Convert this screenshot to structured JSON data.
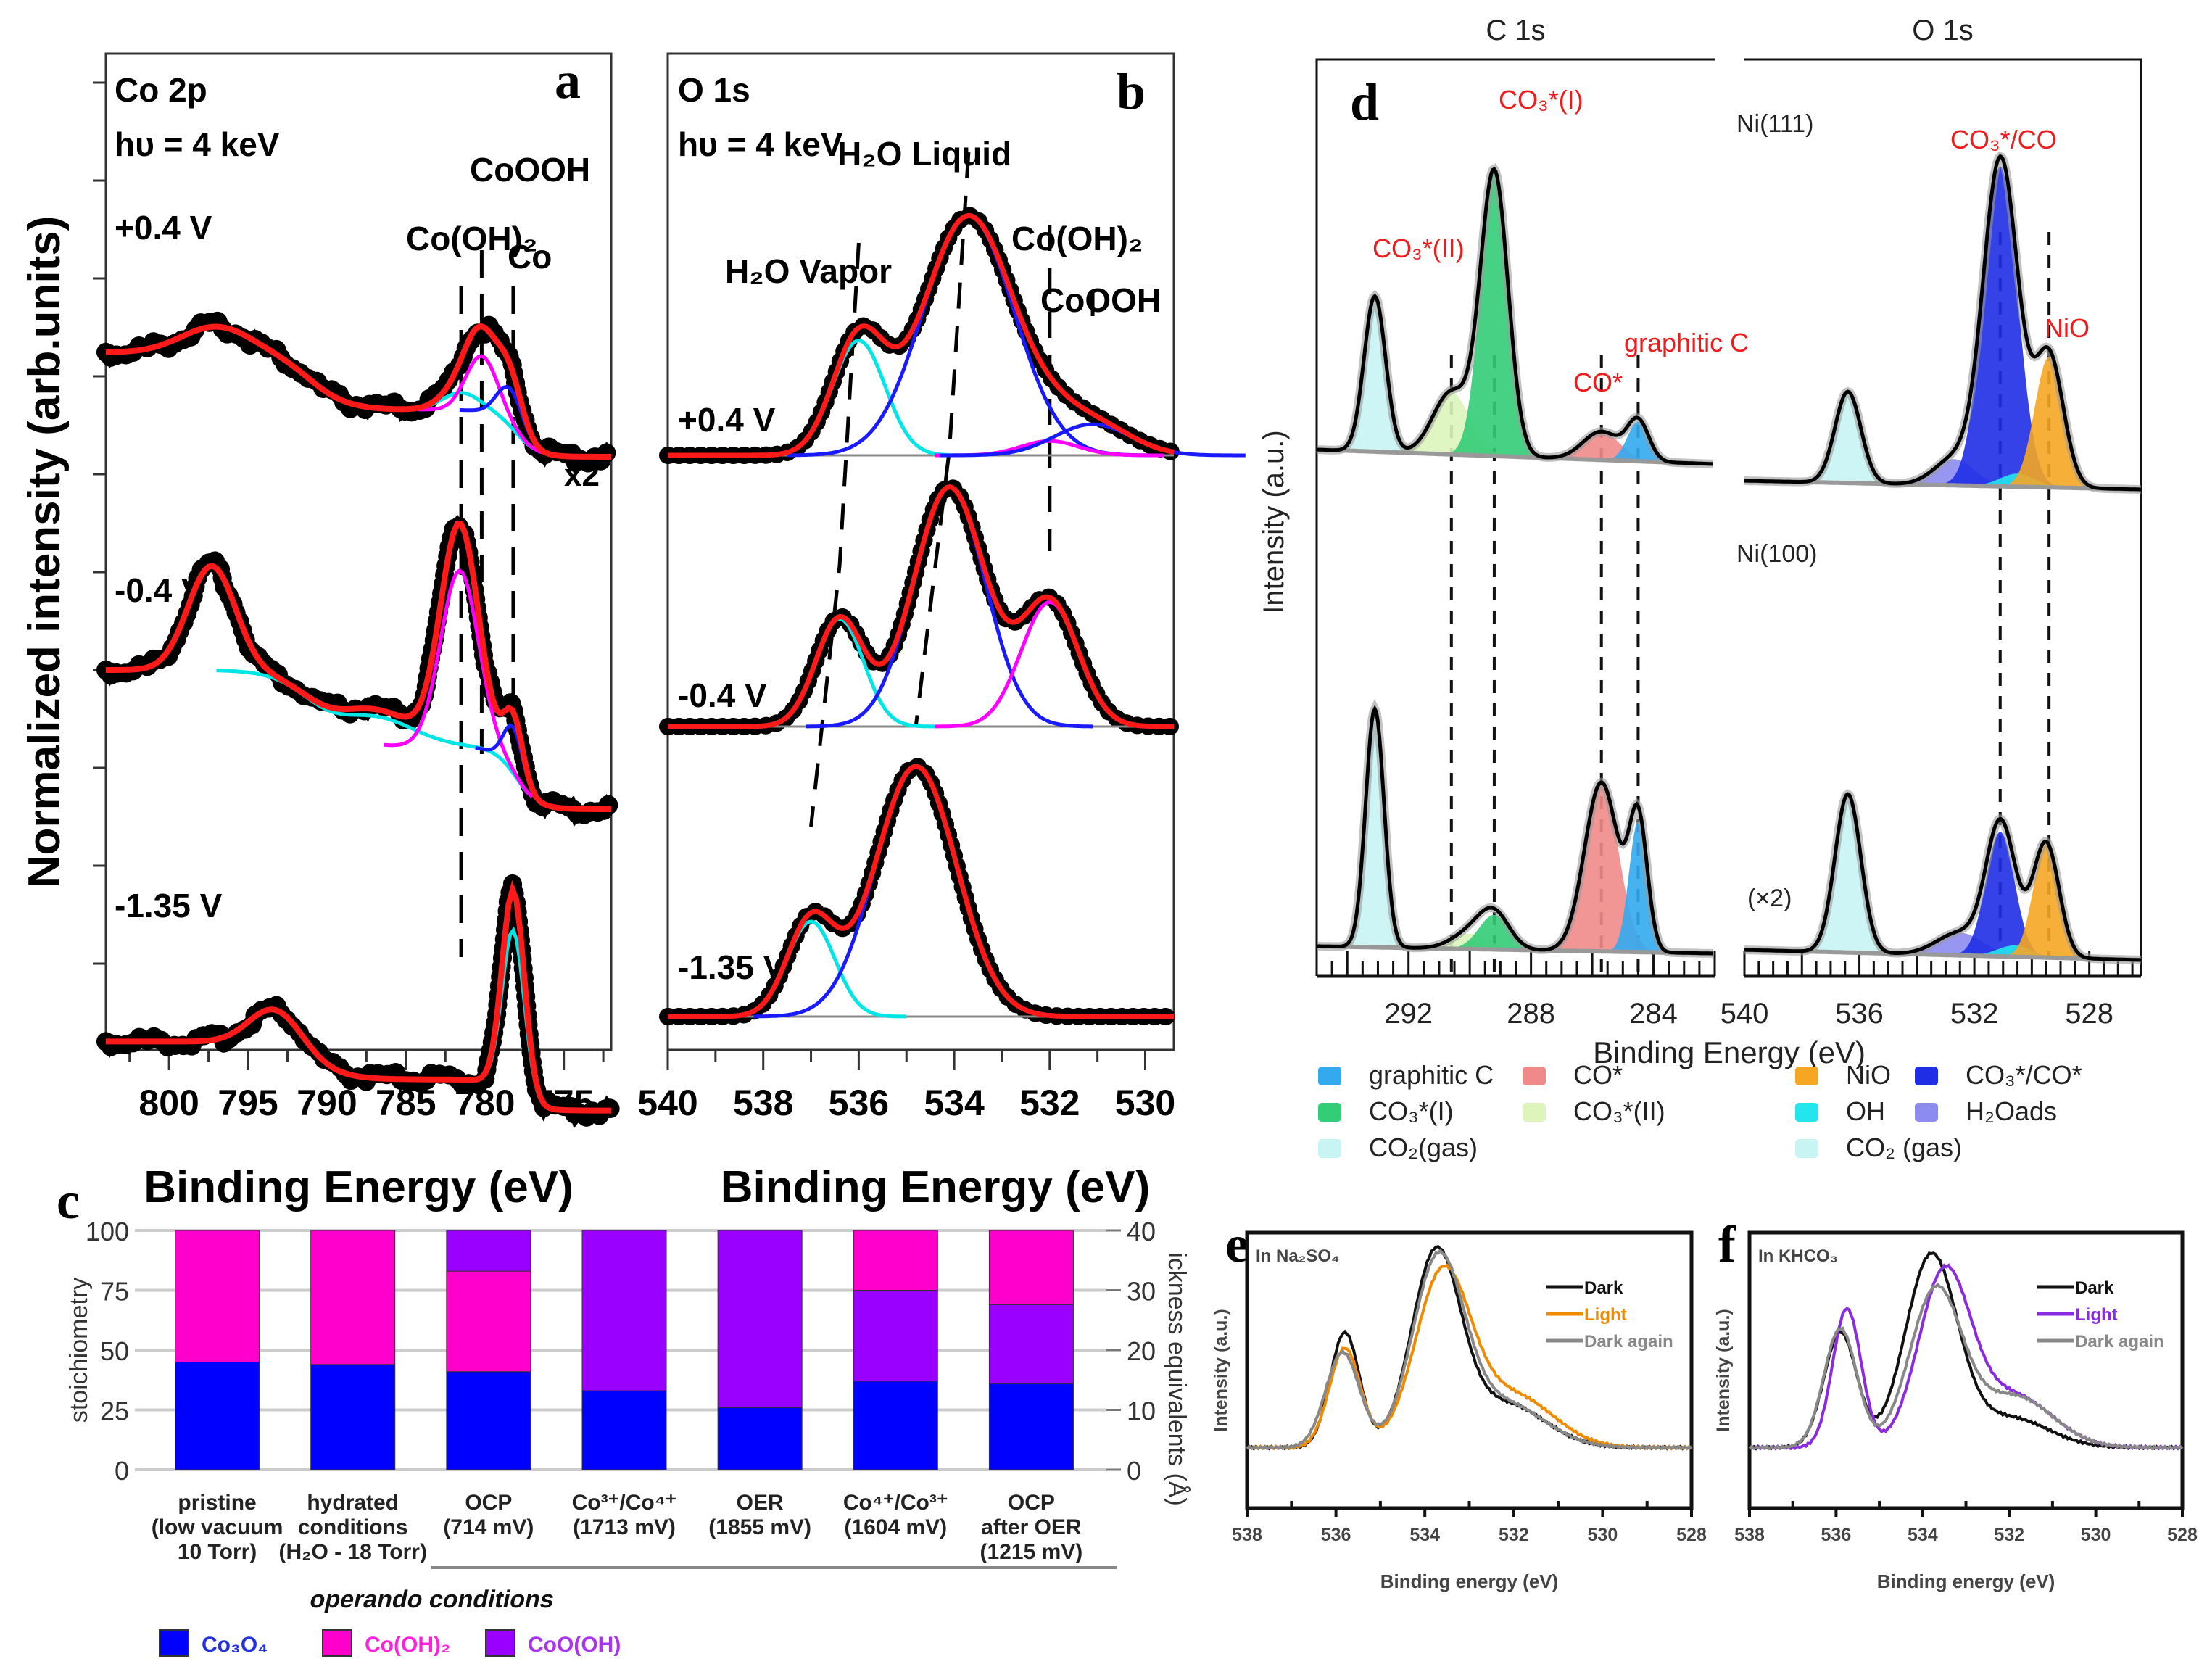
{
  "figure": {
    "panel_letters": {
      "a": "a",
      "b": "b",
      "c": "c",
      "d": "d",
      "e": "e",
      "f": "f"
    }
  },
  "chart_data": [
    {
      "id": "a",
      "type": "line",
      "title": "Co 2p",
      "subtitle": "hυ = 4 keV",
      "xlabel": "Binding Energy (eV)",
      "ylabel": "Normalized intensity (arb.units)",
      "xlim": [
        804,
        772
      ],
      "x_ticks": [
        800,
        795,
        790,
        785,
        780,
        775
      ],
      "annotations": [
        "Co(OH)₂",
        "CoOOH",
        "Co",
        "x2"
      ],
      "marker_lines_eV": [
        781.5,
        780.2,
        778.2
      ],
      "spectra": [
        {
          "label": "+0.4 V",
          "baseline_left": 0.78,
          "baseline_right": 0.3,
          "peaks": [
            {
              "name": "satellite",
              "center": 797,
              "height": 0.12,
              "width": 2.2
            },
            {
              "name": "Co(OH)2",
              "center": 781.5,
              "height": 0.1,
              "width": 1.2
            },
            {
              "name": "CoOOH",
              "center": 780.2,
              "height": 0.32,
              "width": 1.0
            },
            {
              "name": "Co",
              "center": 778.4,
              "height": 0.22,
              "width": 0.8
            }
          ]
        },
        {
          "label": "-0.4 V",
          "baseline_left": 0.8,
          "baseline_right": 0.2,
          "peaks": [
            {
              "name": "satellite",
              "center": 797.3,
              "height": 0.45,
              "width": 1.5
            },
            {
              "name": "sat2",
              "center": 787,
              "height": 0.15,
              "width": 2.5
            },
            {
              "name": "Co(OH)2",
              "center": 781.6,
              "height": 0.95,
              "width": 1.2
            },
            {
              "name": "Co",
              "center": 778.2,
              "height": 0.25,
              "width": 0.6
            }
          ]
        },
        {
          "label": "-1.35 V",
          "baseline_left": 0.62,
          "baseline_right": 0.28,
          "peaks": [
            {
              "name": "satellite",
              "center": 793.3,
              "height": 0.18,
              "width": 1.6
            },
            {
              "name": "Co",
              "center": 778.2,
              "height": 1.0,
              "width": 0.7
            }
          ]
        }
      ]
    },
    {
      "id": "b",
      "type": "line",
      "title": "O 1s",
      "subtitle": "hυ = 4 keV",
      "xlabel": "Binding Energy (eV)",
      "xlim": [
        540,
        529.4
      ],
      "x_ticks": [
        540,
        538,
        536,
        534,
        532,
        530
      ],
      "annotations": [
        "H₂O Vapor",
        "H₂O Liquid",
        "Co(OH)₂",
        "CoOOH"
      ],
      "spectra": [
        {
          "label": "+0.4 V",
          "peaks": [
            {
              "name": "H2O Vapor",
              "center": 536.0,
              "height": 0.48,
              "width": 0.55,
              "color": "#00e5e5"
            },
            {
              "name": "H2O Liquid",
              "center": 533.7,
              "height": 1.0,
              "width": 0.95,
              "color": "#1a1aff"
            },
            {
              "name": "Co(OH)2",
              "center": 532.0,
              "height": 0.06,
              "width": 0.6,
              "color": "#ff00ff"
            },
            {
              "name": "CoOOH",
              "center": 531.1,
              "height": 0.13,
              "width": 0.8,
              "color": "#1a1aff"
            }
          ]
        },
        {
          "label": "-0.4 V",
          "peaks": [
            {
              "name": "H2O Vapor",
              "center": 536.4,
              "height": 0.45,
              "width": 0.5,
              "color": "#00e5e5"
            },
            {
              "name": "H2O Liquid",
              "center": 534.1,
              "height": 1.0,
              "width": 0.75,
              "color": "#1a1aff"
            },
            {
              "name": "Co(OH)2",
              "center": 532.0,
              "height": 0.52,
              "width": 0.6,
              "color": "#ff00ff"
            }
          ]
        },
        {
          "label": "-1.35 V",
          "peaks": [
            {
              "name": "H2O Vapor",
              "center": 537.0,
              "height": 0.38,
              "width": 0.5,
              "color": "#00e5e5"
            },
            {
              "name": "H2O Liquid",
              "center": 534.8,
              "height": 1.0,
              "width": 0.85,
              "color": "#1a1aff"
            }
          ]
        }
      ]
    },
    {
      "id": "c",
      "type": "bar",
      "stacked": true,
      "ylabel": "stoichiometry",
      "ylabel_right": "ickness equivalents (Å)",
      "ylim": [
        0,
        100
      ],
      "ylim_right": [
        0,
        40
      ],
      "y_ticks": [
        0,
        25,
        50,
        75,
        100
      ],
      "y_ticks_right": [
        0,
        10,
        20,
        30,
        40
      ],
      "grid": true,
      "categories": [
        [
          "pristine",
          "(low vacuum",
          "10 Torr)"
        ],
        [
          "hydrated",
          "conditions",
          "(H₂O - 18 Torr)"
        ],
        [
          "OCP",
          "(714 mV)"
        ],
        [
          "Co³⁺/Co⁴⁺",
          "(1713 mV)"
        ],
        [
          "OER",
          "(1855 mV)"
        ],
        [
          "Co⁴⁺/Co³⁺",
          "(1604 mV)"
        ],
        [
          "OCP",
          "after OER",
          "(1215 mV)"
        ]
      ],
      "group_label": "operando conditions",
      "series": [
        {
          "name": "Co₃O₄",
          "color": "#0000ff",
          "values": [
            45,
            44,
            41,
            33,
            26,
            37,
            36
          ]
        },
        {
          "name": "CoO(OH)",
          "color": "#9900ff",
          "values": [
            0,
            0,
            0,
            67,
            74,
            38,
            33
          ]
        },
        {
          "name": "Co(OH)₂",
          "color": "#ff00cc",
          "values": [
            55,
            56,
            42,
            0,
            0,
            25,
            31
          ]
        },
        {
          "name": "CoO(OH)",
          "color": "#9900ff",
          "values": [
            0,
            0,
            17,
            0,
            0,
            0,
            0
          ]
        }
      ],
      "legend": [
        {
          "name": "Co₃O₄",
          "color": "#0000ff",
          "text_color": "#2233dd"
        },
        {
          "name": "Co(OH)₂",
          "color": "#ff00cc",
          "text_color": "#ff22dd"
        },
        {
          "name": "CoO(OH)",
          "color": "#9900ff",
          "text_color": "#aa33ee"
        }
      ],
      "legend_position": "bottom"
    },
    {
      "id": "d",
      "type": "area",
      "section_titles": [
        "C 1s",
        "O 1s"
      ],
      "xlabel": "Binding Energy (eV)",
      "ylabel": "Intensity (a.u.)",
      "c1s_xlim": [
        295,
        282
      ],
      "c1s_ticks": [
        292,
        288,
        284
      ],
      "o1s_xlim": [
        540,
        526.2
      ],
      "o1s_ticks": [
        540,
        536,
        532,
        528
      ],
      "surfaces": [
        "Ni(111)",
        "Ni(100)"
      ],
      "scale_note": "(×2)",
      "peak_labels": [
        "CO₃*(I)",
        "CO₃*(II)",
        "CO*",
        "graphitic C",
        "CO₃*/CO",
        "NiO"
      ],
      "dashed_lines_eV": {
        "c1s": [
          290.6,
          289.2,
          285.7,
          284.5
        ],
        "o1s": [
          531.1,
          529.4
        ]
      },
      "components": {
        "graphitic C": "#33aaee",
        "CO*": "#f08a8a",
        "CO3*(I)": "#33cc77",
        "CO3*(II)": "#ddf5bb",
        "CO2(gas)": "#c8f4f4",
        "NiO": "#f5a623",
        "CO3*/CO*": "#1f2ee6",
        "OH": "#22e5ee",
        "H2Oads": "#8c8cf0"
      },
      "spectra": {
        "Ni111_C1s": [
          {
            "name": "CO2(gas)",
            "center": 293.1,
            "height": 0.55,
            "width": 0.35
          },
          {
            "name": "CO3*(II)",
            "center": 290.6,
            "height": 0.22,
            "width": 0.6
          },
          {
            "name": "CO3*(I)",
            "center": 289.2,
            "height": 1.0,
            "width": 0.45
          },
          {
            "name": "CO*",
            "center": 285.7,
            "height": 0.1,
            "width": 0.6
          },
          {
            "name": "graphitic C",
            "center": 284.5,
            "height": 0.14,
            "width": 0.35
          }
        ],
        "Ni111_O1s": [
          {
            "name": "CO2(gas)",
            "center": 536.4,
            "height": 0.28,
            "width": 0.45
          },
          {
            "name": "H2Oads",
            "center": 532.7,
            "height": 0.08,
            "width": 0.7
          },
          {
            "name": "CO3*/CO*",
            "center": 531.1,
            "height": 0.98,
            "width": 0.6
          },
          {
            "name": "OH",
            "center": 530.5,
            "height": 0.04,
            "width": 0.6
          },
          {
            "name": "NiO",
            "center": 529.4,
            "height": 0.4,
            "width": 0.5
          }
        ],
        "Ni100_C1s": [
          {
            "name": "CO2(gas)",
            "center": 293.1,
            "height": 0.62,
            "width": 0.3
          },
          {
            "name": "CO3*(II)",
            "center": 290.0,
            "height": 0.04,
            "width": 0.6
          },
          {
            "name": "CO3*(I)",
            "center": 289.2,
            "height": 0.09,
            "width": 0.5
          },
          {
            "name": "CO*",
            "center": 285.7,
            "height": 0.44,
            "width": 0.55
          },
          {
            "name": "graphitic C",
            "center": 284.5,
            "height": 0.34,
            "width": 0.3
          }
        ],
        "Ni100_O1s": [
          {
            "name": "CO2(gas)",
            "center": 536.4,
            "height": 0.42,
            "width": 0.45
          },
          {
            "name": "H2Oads",
            "center": 532.5,
            "height": 0.06,
            "width": 0.8
          },
          {
            "name": "CO3*/CO*",
            "center": 531.1,
            "height": 0.33,
            "width": 0.5
          },
          {
            "name": "OH",
            "center": 530.6,
            "height": 0.03,
            "width": 0.6
          },
          {
            "name": "NiO",
            "center": 529.5,
            "height": 0.3,
            "width": 0.45
          }
        ]
      },
      "legend_left": [
        {
          "name": "graphitic C",
          "color": "#33aaee"
        },
        {
          "name": "CO*",
          "color": "#f08a8a"
        },
        {
          "name": "CO₃*(I)",
          "color": "#33cc77"
        },
        {
          "name": "CO₃*(II)",
          "color": "#ddf5bb"
        },
        {
          "name": "CO₂(gas)",
          "color": "#c8f4f4"
        }
      ],
      "legend_right": [
        {
          "name": "NiO",
          "color": "#f5a623"
        },
        {
          "name": "CO₃*/CO*",
          "color": "#1f2ee6"
        },
        {
          "name": "OH",
          "color": "#22e5ee"
        },
        {
          "name": "H₂Oads",
          "color": "#8c8cf0"
        },
        {
          "name": "CO₂ (gas)",
          "color": "#c8f4f4"
        }
      ]
    },
    {
      "id": "e",
      "type": "line",
      "inset_title": "In Na₂SO₄",
      "xlabel": "Binding energy (eV)",
      "ylabel": "Intensity (a.u.)",
      "xlim": [
        538,
        528
      ],
      "x_ticks": [
        538,
        536,
        534,
        532,
        530,
        528
      ],
      "legend_position": "top-right",
      "series": [
        {
          "name": "Dark",
          "color": "#111111",
          "peaks": [
            {
              "center": 535.8,
              "height": 0.58,
              "width": 0.33
            },
            {
              "center": 533.75,
              "height": 0.96,
              "width": 0.55
            },
            {
              "center": 532.2,
              "height": 0.22,
              "width": 0.9
            }
          ]
        },
        {
          "name": "Light",
          "color": "#f08a00",
          "peaks": [
            {
              "center": 535.8,
              "height": 0.5,
              "width": 0.35
            },
            {
              "center": 533.6,
              "height": 0.86,
              "width": 0.62
            },
            {
              "center": 532.0,
              "height": 0.26,
              "width": 0.9
            }
          ]
        },
        {
          "name": "Dark again",
          "color": "#888888",
          "peaks": [
            {
              "center": 535.85,
              "height": 0.48,
              "width": 0.38
            },
            {
              "center": 533.7,
              "height": 0.93,
              "width": 0.58
            },
            {
              "center": 532.2,
              "height": 0.22,
              "width": 0.9
            }
          ]
        }
      ]
    },
    {
      "id": "f",
      "type": "line",
      "inset_title": "In KHCO₃",
      "xlabel": "Binding energy (eV)",
      "ylabel": "Intensity (a.u.)",
      "xlim": [
        538,
        528
      ],
      "x_ticks": [
        538,
        536,
        534,
        532,
        530,
        528
      ],
      "legend_position": "top-right",
      "series": [
        {
          "name": "Dark",
          "color": "#111111",
          "peaks": [
            {
              "center": 535.9,
              "height": 0.58,
              "width": 0.38
            },
            {
              "center": 533.8,
              "height": 0.96,
              "width": 0.6
            },
            {
              "center": 532.0,
              "height": 0.15,
              "width": 0.9
            }
          ]
        },
        {
          "name": "Light",
          "color": "#8a2be2",
          "peaks": [
            {
              "center": 535.75,
              "height": 0.7,
              "width": 0.33
            },
            {
              "center": 533.5,
              "height": 0.86,
              "width": 0.6
            },
            {
              "center": 531.9,
              "height": 0.26,
              "width": 0.9
            }
          ]
        },
        {
          "name": "Dark again",
          "color": "#888888",
          "peaks": [
            {
              "center": 535.9,
              "height": 0.6,
              "width": 0.38
            },
            {
              "center": 533.7,
              "height": 0.78,
              "width": 0.6
            },
            {
              "center": 531.9,
              "height": 0.26,
              "width": 0.9
            }
          ]
        }
      ]
    }
  ]
}
